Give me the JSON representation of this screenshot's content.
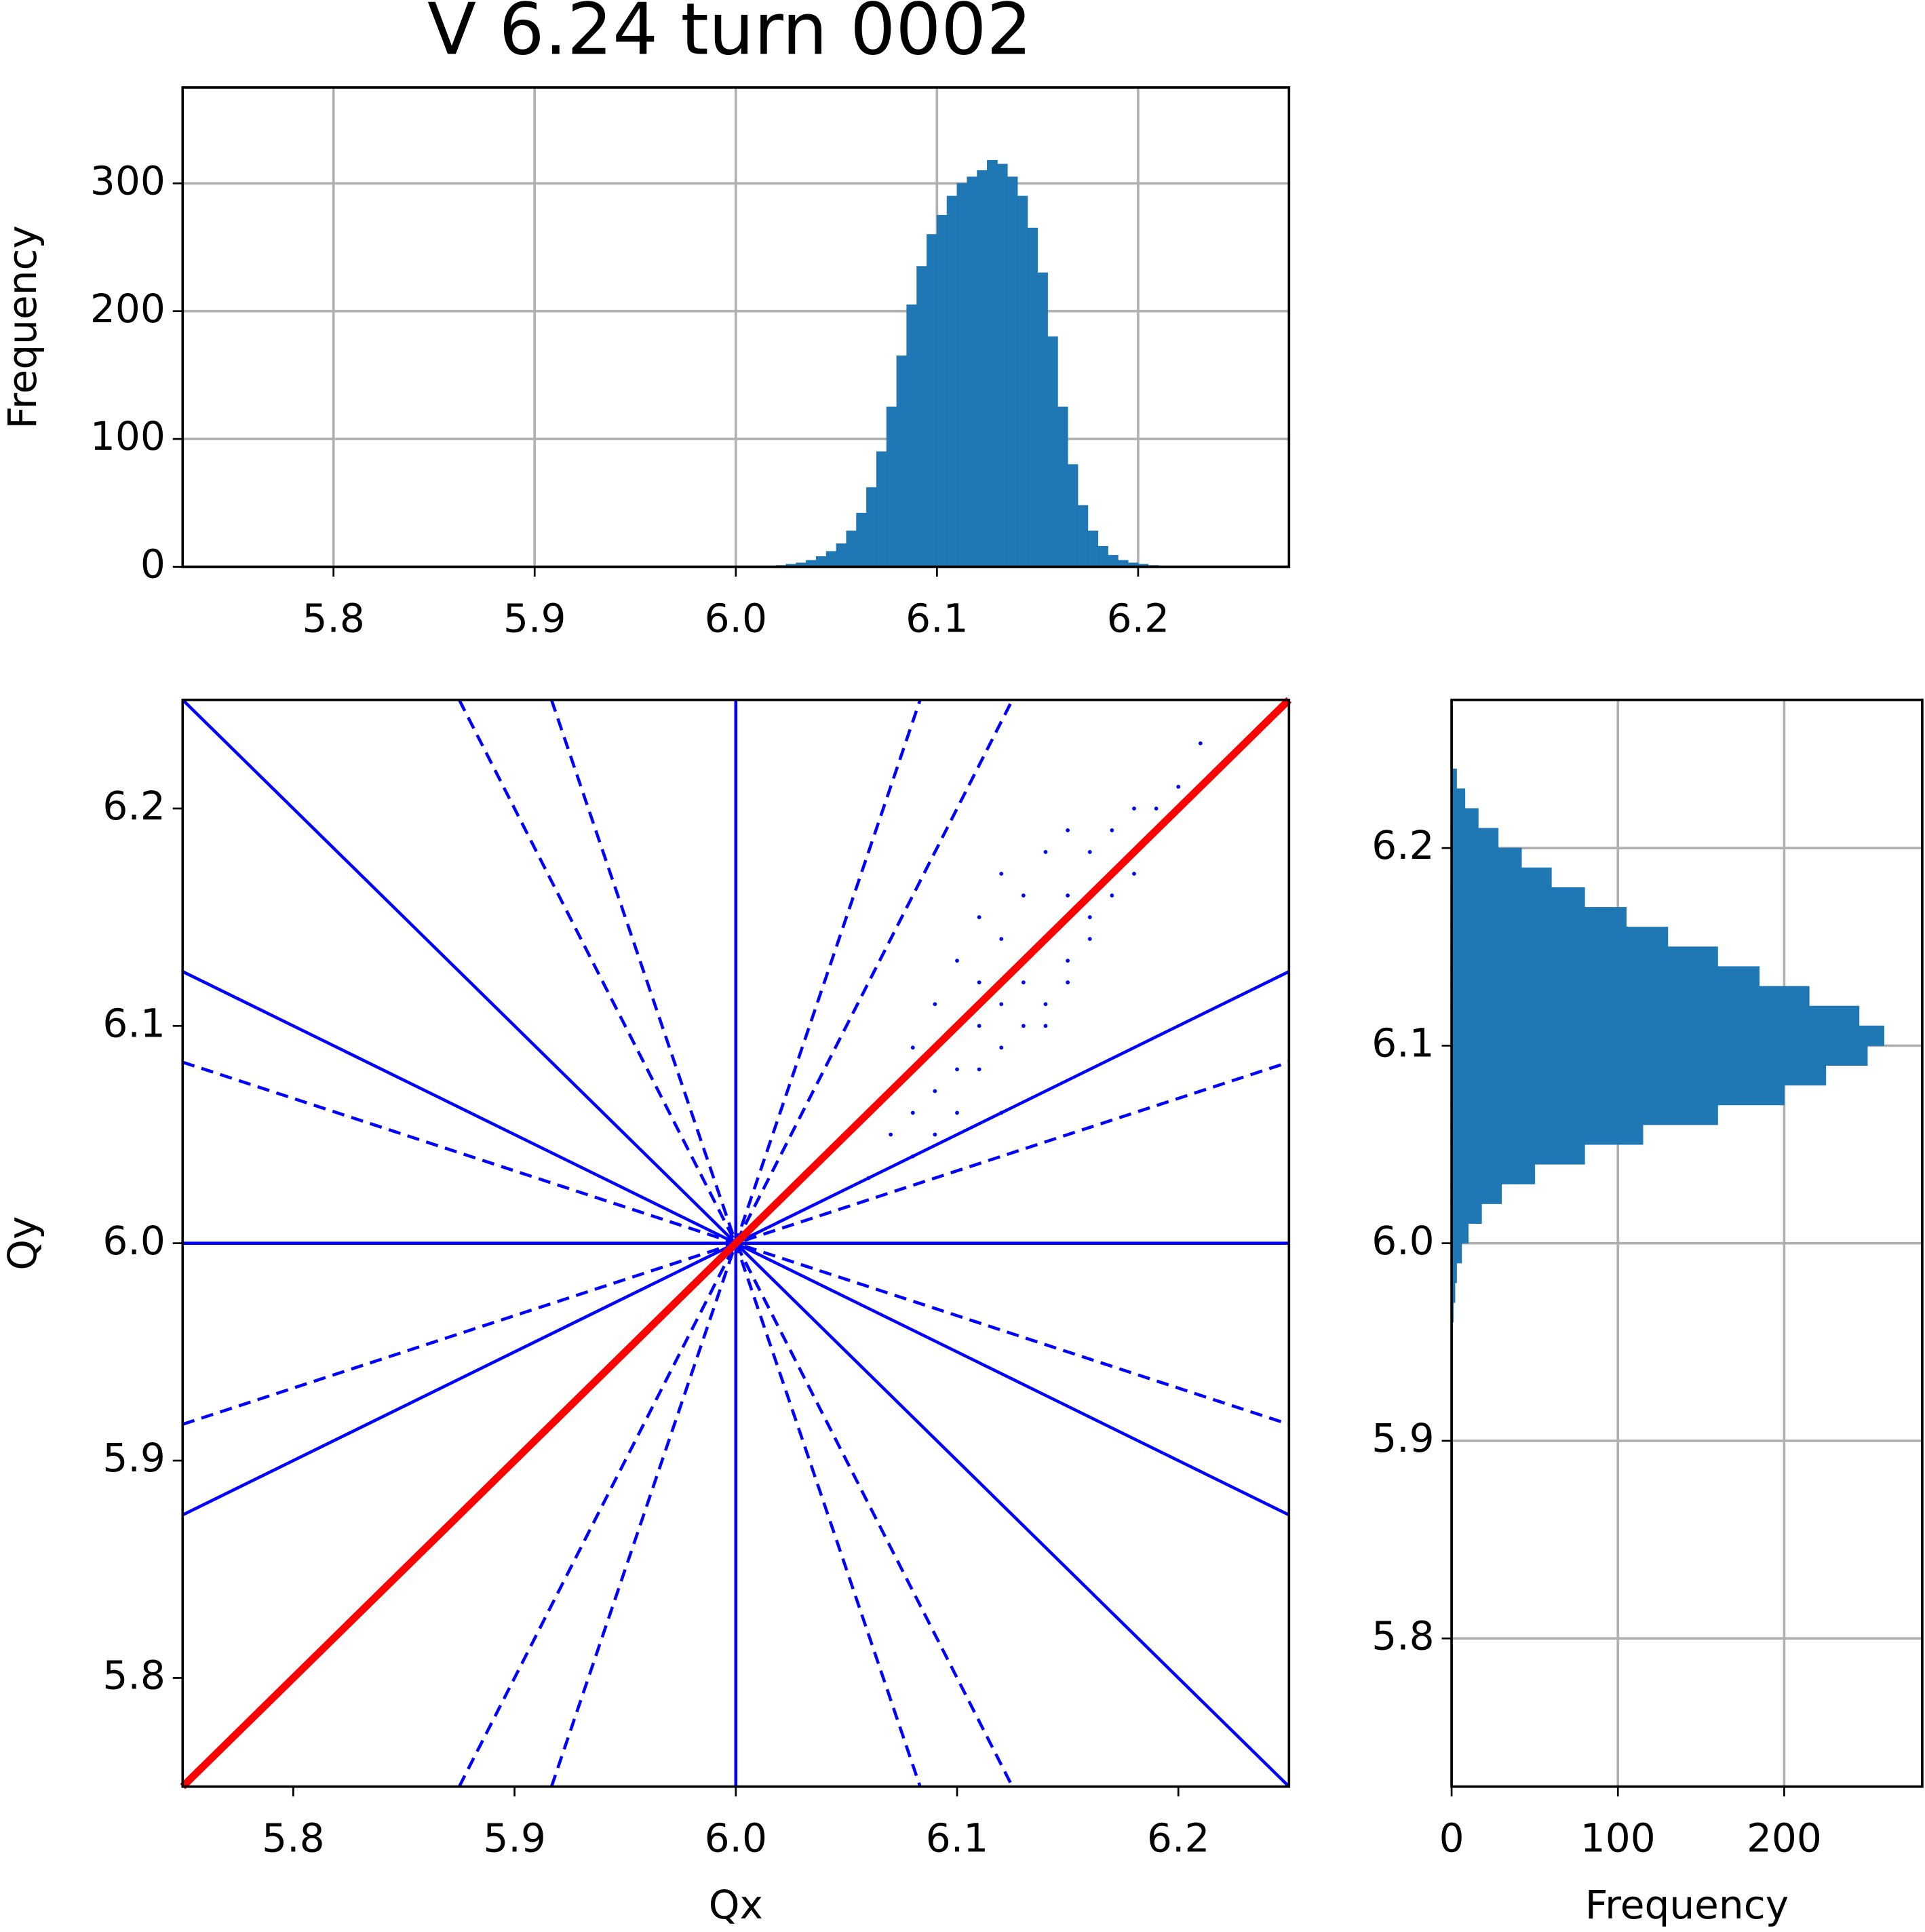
{
  "chart_data": [
    {
      "type": "histogram",
      "title": "V 6.24 turn 0002",
      "ylabel": "Frequency",
      "color": "#1f77b4",
      "grid": true,
      "xlim": [
        5.725,
        6.275
      ],
      "ylim": [
        0,
        375
      ],
      "xticks": [
        5.8,
        5.9,
        {
          "value": 6,
          "label": "6.0"
        },
        6.1,
        6.2
      ],
      "yticks": [
        0,
        100,
        200,
        300
      ],
      "bins": [
        6.02,
        6.025,
        6.03,
        6.035,
        6.04,
        6.045,
        6.05,
        6.055,
        6.06,
        6.065,
        6.07,
        6.075,
        6.08,
        6.085,
        6.09,
        6.095,
        6.1,
        6.105,
        6.11,
        6.115,
        6.12,
        6.125,
        6.13,
        6.135,
        6.14,
        6.145,
        6.15,
        6.155,
        6.16,
        6.165,
        6.17,
        6.175,
        6.18,
        6.185,
        6.19,
        6.195,
        6.2,
        6.205,
        6.21,
        6.215,
        6.22
      ],
      "values": [
        1,
        2,
        3,
        5,
        8,
        12,
        18,
        28,
        42,
        62,
        90,
        125,
        165,
        205,
        235,
        260,
        275,
        290,
        300,
        305,
        310,
        318,
        315,
        305,
        290,
        265,
        230,
        180,
        125,
        80,
        48,
        28,
        16,
        9,
        5,
        3,
        2,
        1,
        0,
        0
      ]
    },
    {
      "type": "scatter",
      "xlabel": "Qx",
      "ylabel": "Qy",
      "color": "#0000ff",
      "grid": false,
      "xlim": [
        5.75,
        6.25
      ],
      "ylim": [
        5.75,
        6.25
      ],
      "xticks": [
        5.8,
        5.9,
        {
          "value": 6,
          "label": "6.0"
        },
        6.1,
        6.2
      ],
      "yticks": [
        5.8,
        5.9,
        {
          "value": 6,
          "label": "6.0"
        },
        6.1,
        6.2
      ],
      "x": [
        6.06,
        6.07,
        6.08,
        6.08,
        6.09,
        6.09,
        6.1,
        6.1,
        6.1,
        6.11,
        6.11,
        6.11,
        6.12,
        6.12,
        6.12,
        6.12,
        6.13,
        6.13,
        6.13,
        6.14,
        6.14,
        6.14,
        6.15,
        6.15,
        6.15,
        6.16,
        6.16,
        6.17,
        6.17,
        6.18,
        6.19,
        6.2,
        6.21,
        6.07,
        6.09,
        6.11,
        6.13,
        6.15,
        6.1,
        6.12,
        6.14,
        6.08,
        6.16,
        6.18,
        6.12
      ],
      "y": [
        6.03,
        6.05,
        6.04,
        6.09,
        6.07,
        6.11,
        6.06,
        6.1,
        6.13,
        6.08,
        6.12,
        6.15,
        6.09,
        6.11,
        6.14,
        6.17,
        6.1,
        6.13,
        6.16,
        6.11,
        6.14,
        6.18,
        6.12,
        6.16,
        6.19,
        6.14,
        6.18,
        6.16,
        6.19,
        6.17,
        6.2,
        6.21,
        6.23,
        6.07,
        6.05,
        6.1,
        6.12,
        6.13,
        6.08,
        6.06,
        6.1,
        6.06,
        6.15,
        6.2,
        6.12
      ],
      "lines": [
        {
          "x": [
            6,
            6
          ],
          "y": [
            5.75,
            6.25
          ],
          "color": "#0000ff",
          "dashed": false
        },
        {
          "x": [
            5.75,
            6.25
          ],
          "y": [
            6,
            6
          ],
          "color": "#0000ff",
          "dashed": false
        },
        {
          "x": [
            5.75,
            6.25
          ],
          "y": [
            6.25,
            5.75
          ],
          "color": "#0000ff",
          "dashed": false
        },
        {
          "x": [
            5.75,
            6.25
          ],
          "y": [
            5.875,
            6.125
          ],
          "color": "#0000ff",
          "dashed": false
        },
        {
          "x": [
            5.75,
            6.25
          ],
          "y": [
            6.125,
            5.875
          ],
          "color": "#0000ff",
          "dashed": false
        },
        {
          "x": [
            5.75,
            6.25
          ],
          "y": [
            5.9167,
            6.0833
          ],
          "color": "#0000ff",
          "dashed": true
        },
        {
          "x": [
            5.75,
            6.25
          ],
          "y": [
            6.0833,
            5.9167
          ],
          "color": "#0000ff",
          "dashed": true
        },
        {
          "x": [
            5.875,
            6.125
          ],
          "y": [
            5.75,
            6.25
          ],
          "color": "#0000ff",
          "dashed": true
        },
        {
          "x": [
            5.875,
            6.125
          ],
          "y": [
            6.25,
            5.75
          ],
          "color": "#0000ff",
          "dashed": true
        },
        {
          "x": [
            5.9167,
            6.0833
          ],
          "y": [
            5.75,
            6.25
          ],
          "color": "#0000ff",
          "dashed": true
        },
        {
          "x": [
            5.9167,
            6.0833
          ],
          "y": [
            6.25,
            5.75
          ],
          "color": "#0000ff",
          "dashed": true
        },
        {
          "x": [
            5.75,
            6.25
          ],
          "y": [
            5.75,
            6.25
          ],
          "color": "#ff0000",
          "dashed": false
        }
      ]
    },
    {
      "type": "histogram",
      "orientation": "horizontal",
      "xlabel": "Frequency",
      "color": "#1f77b4",
      "grid": true,
      "xlim": [
        0,
        283
      ],
      "ylim": [
        5.725,
        6.275
      ],
      "xticks": [
        0,
        100,
        200
      ],
      "yticks": [
        5.8,
        5.9,
        {
          "value": 6,
          "label": "6.0"
        },
        6.1,
        6.2
      ],
      "bins": [
        5.96,
        5.97,
        5.98,
        5.99,
        6.0,
        6.01,
        6.02,
        6.03,
        6.04,
        6.05,
        6.06,
        6.07,
        6.08,
        6.09,
        6.1,
        6.11,
        6.12,
        6.13,
        6.14,
        6.15,
        6.16,
        6.17,
        6.18,
        6.19,
        6.2,
        6.21,
        6.22,
        6.23,
        6.24
      ],
      "values": [
        1,
        2,
        3,
        6,
        10,
        18,
        30,
        50,
        80,
        115,
        160,
        200,
        225,
        250,
        260,
        245,
        215,
        185,
        160,
        130,
        105,
        80,
        60,
        42,
        28,
        16,
        8,
        3
      ]
    }
  ]
}
